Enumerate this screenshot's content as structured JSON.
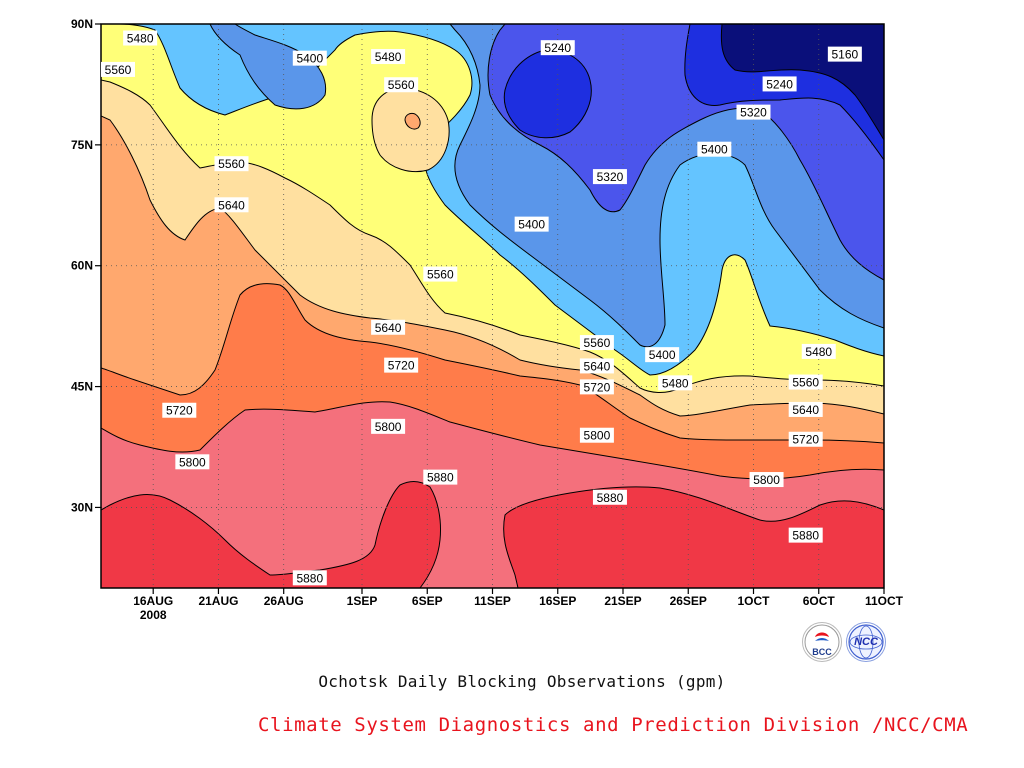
{
  "chart_data": {
    "type": "heatmap",
    "subtype": "filled-contour",
    "title": "Ochotsk Daily Blocking Observations (gpm)",
    "y_ticks": [
      "90N",
      "75N",
      "60N",
      "45N",
      "30N"
    ],
    "y_tick_values": [
      90,
      75,
      60,
      45,
      30
    ],
    "ylim": [
      20,
      90
    ],
    "x_ticks": [
      "16AUG",
      "21AUG",
      "26AUG",
      "1SEP",
      "6SEP",
      "11SEP",
      "16SEP",
      "21SEP",
      "26SEP",
      "1OCT",
      "6OCT",
      "11OCT"
    ],
    "x_tick_dates": [
      "2008-08-16",
      "2008-08-21",
      "2008-08-26",
      "2008-09-01",
      "2008-09-06",
      "2008-09-11",
      "2008-09-16",
      "2008-09-21",
      "2008-09-26",
      "2008-10-01",
      "2008-10-06",
      "2008-10-11"
    ],
    "xlim": [
      "2008-08-12",
      "2008-10-11"
    ],
    "x_year_label": "2008",
    "levels": [
      5160,
      5240,
      5320,
      5400,
      5480,
      5560,
      5640,
      5720,
      5800,
      5880
    ],
    "colors": {
      "5160": "#0a0f7a",
      "5240": "#1e2fe0",
      "5320": "#4b55ec",
      "5400": "#5a96ea",
      "5480": "#64c4ff",
      "5560": "#ffff78",
      "5640": "#ffe0a0",
      "5720": "#ffa86e",
      "5800": "#ff7c4a",
      "5880": "#f4707c",
      "above": "#f03846"
    },
    "contour_labels": [
      {
        "text": "5480",
        "date": "2008-08-15",
        "lat": 88.2
      },
      {
        "text": "5560",
        "date": "2008-08-12",
        "lat": 84.3
      },
      {
        "text": "5400",
        "date": "2008-08-28",
        "lat": 85.7
      },
      {
        "text": "5480",
        "date": "2008-09-03",
        "lat": 85.9
      },
      {
        "text": "5560",
        "date": "2008-09-04",
        "lat": 82.4
      },
      {
        "text": "5240",
        "date": "2008-09-16",
        "lat": 87.0
      },
      {
        "text": "5160",
        "date": "2008-10-08",
        "lat": 86.2
      },
      {
        "text": "5240",
        "date": "2008-10-03",
        "lat": 82.5
      },
      {
        "text": "5320",
        "date": "2008-10-01",
        "lat": 79.0
      },
      {
        "text": "5400",
        "date": "2008-09-28",
        "lat": 74.4
      },
      {
        "text": "5320",
        "date": "2008-09-20",
        "lat": 71.0
      },
      {
        "text": "5560",
        "date": "2008-08-22",
        "lat": 72.6
      },
      {
        "text": "5640",
        "date": "2008-08-22",
        "lat": 67.5
      },
      {
        "text": "5400",
        "date": "2008-09-14",
        "lat": 65.1
      },
      {
        "text": "5560",
        "date": "2008-09-07",
        "lat": 58.9
      },
      {
        "text": "5640",
        "date": "2008-09-03",
        "lat": 52.3
      },
      {
        "text": "5560",
        "date": "2008-09-19",
        "lat": 50.4
      },
      {
        "text": "5400",
        "date": "2008-09-24",
        "lat": 48.9
      },
      {
        "text": "5480",
        "date": "2008-10-06",
        "lat": 49.3
      },
      {
        "text": "5720",
        "date": "2008-09-04",
        "lat": 47.6
      },
      {
        "text": "5640",
        "date": "2008-09-19",
        "lat": 47.5
      },
      {
        "text": "5560",
        "date": "2008-10-05",
        "lat": 45.5
      },
      {
        "text": "5480",
        "date": "2008-09-25",
        "lat": 45.4
      },
      {
        "text": "5720",
        "date": "2008-09-19",
        "lat": 44.9
      },
      {
        "text": "5720",
        "date": "2008-08-18",
        "lat": 42.0
      },
      {
        "text": "5640",
        "date": "2008-10-05",
        "lat": 42.1
      },
      {
        "text": "5800",
        "date": "2008-09-03",
        "lat": 40.0
      },
      {
        "text": "5800",
        "date": "2008-09-19",
        "lat": 38.9
      },
      {
        "text": "5720",
        "date": "2008-10-05",
        "lat": 38.4
      },
      {
        "text": "5800",
        "date": "2008-08-19",
        "lat": 35.6
      },
      {
        "text": "5880",
        "date": "2008-09-07",
        "lat": 33.7
      },
      {
        "text": "5800",
        "date": "2008-10-02",
        "lat": 33.4
      },
      {
        "text": "5880",
        "date": "2008-09-20",
        "lat": 31.2
      },
      {
        "text": "5880",
        "date": "2008-10-05",
        "lat": 26.5
      },
      {
        "text": "5880",
        "date": "2008-08-28",
        "lat": 21.2
      }
    ]
  },
  "footer": {
    "caption": "Ochotsk Daily Blocking Observations (gpm)",
    "credit": "Climate System Diagnostics and Prediction Division /NCC/CMA",
    "logo_bcc": "BCC",
    "logo_ncc": "NCC"
  }
}
